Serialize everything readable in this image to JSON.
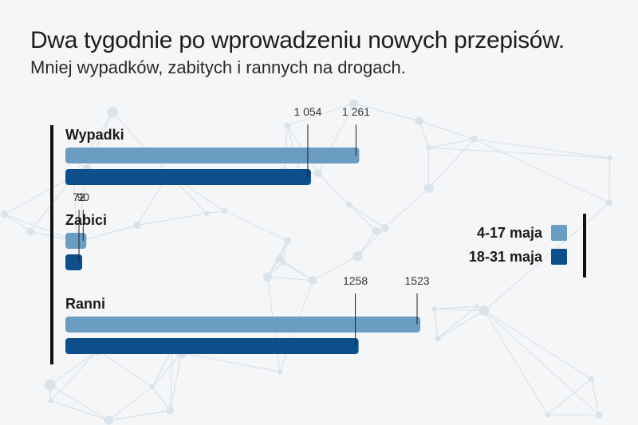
{
  "header": {
    "title": "Dwa tygodnie po wprowadzeniu nowych przepisów.",
    "subtitle": "Mniej wypadków, zabitych i rannych na drogach."
  },
  "colors": {
    "background": "#f4f6f8",
    "series_1": "#6b9dc2",
    "series_2": "#0d4f8b",
    "axis": "#111111",
    "network": "#cfd8e1"
  },
  "chart_data": {
    "type": "bar",
    "orientation": "horizontal",
    "categories": [
      "Wypadki",
      "Zabici",
      "Ranni"
    ],
    "series": [
      {
        "name": "4-17 maja",
        "values": [
          1261,
          90,
          1523
        ],
        "labels": [
          "1 261",
          "90",
          "1523"
        ]
      },
      {
        "name": "18-31 maja",
        "values": [
          1054,
          72,
          1258
        ],
        "labels": [
          "1 054",
          "72",
          "1258"
        ]
      }
    ],
    "title": "Dwa tygodnie po wprowadzeniu nowych przepisów.",
    "subtitle": "Mniej wypadków, zabitych i rannych na drogach.",
    "xlim": [
      0,
      1523
    ],
    "grid": false,
    "legend_position": "right"
  }
}
